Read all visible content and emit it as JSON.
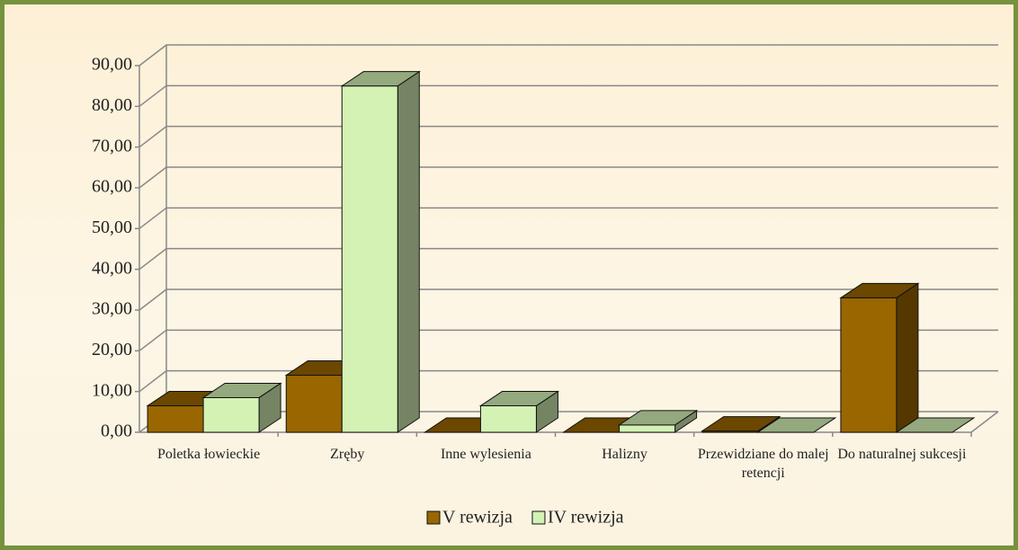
{
  "chart_data": {
    "type": "bar3d",
    "categories": [
      "Poletka łowieckie",
      "Zręby",
      "Inne wylesienia",
      "Halizny",
      "Przewidziane do malej retencji",
      "Do naturalnej sukcesji"
    ],
    "series": [
      {
        "name": "V rewizja",
        "color": "#996600",
        "values": [
          6.5,
          14,
          0,
          0,
          0.3,
          33
        ]
      },
      {
        "name": "IV rewizja",
        "color": "#d4f2b4",
        "values": [
          8.5,
          85,
          6.5,
          1.8,
          0,
          0
        ]
      }
    ],
    "ylim": [
      0,
      90
    ],
    "yticks": [
      {
        "value": 0,
        "label": "0,00"
      },
      {
        "value": 10,
        "label": "10,00"
      },
      {
        "value": 20,
        "label": "20,00"
      },
      {
        "value": 30,
        "label": "30,00"
      },
      {
        "value": 40,
        "label": "40,00"
      },
      {
        "value": 50,
        "label": "50,00"
      },
      {
        "value": 60,
        "label": "60,00"
      },
      {
        "value": 70,
        "label": "70,00"
      },
      {
        "value": 80,
        "label": "80,00"
      },
      {
        "value": 90,
        "label": "90,00"
      }
    ],
    "grid": true,
    "legend": "bottom"
  }
}
